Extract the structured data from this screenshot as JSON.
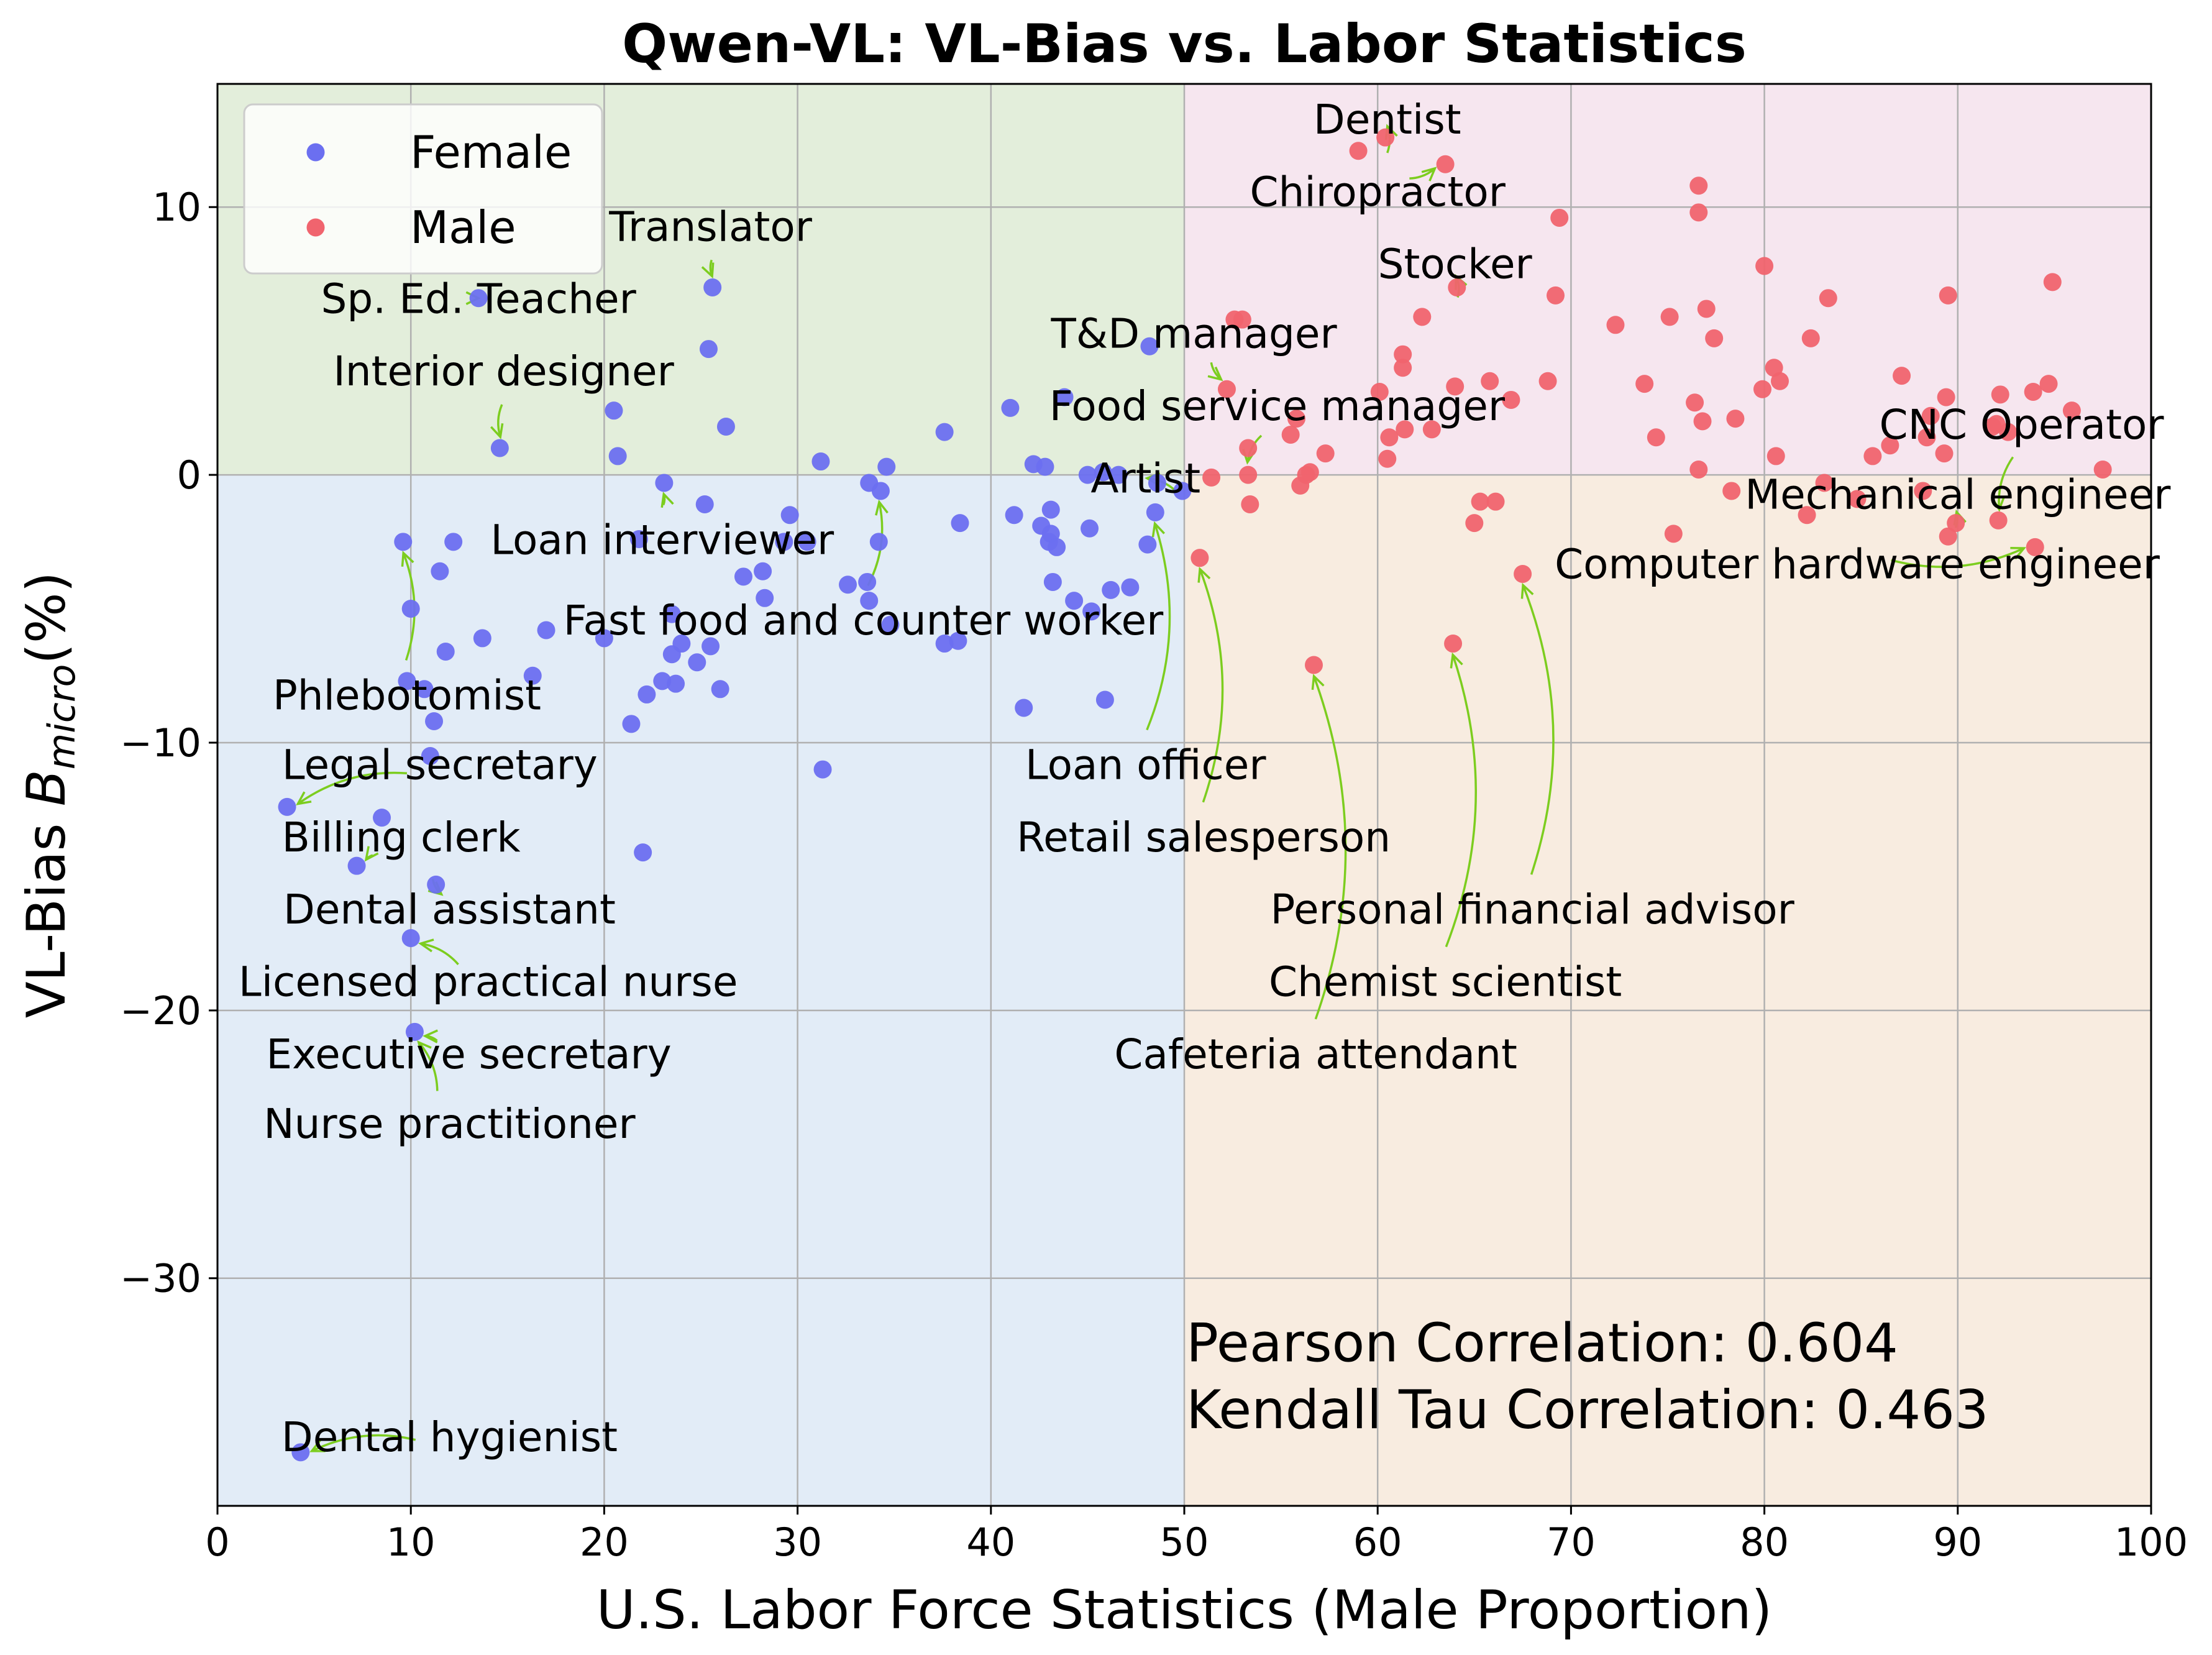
{
  "chart_data": {
    "type": "scatter",
    "title": "Qwen-VL: VL-Bias vs. Labor Statistics",
    "xlabel": "U.S. Labor Force Statistics (Male Proportion)",
    "ylabel_prefix": "VL-Bias  ",
    "ylabel_symbol": "B",
    "ylabel_sub": "micro",
    "ylabel_suffix": "(%)",
    "xlim": [
      0,
      100
    ],
    "ylim": [
      -38.5,
      14.6
    ],
    "xticks": [
      0,
      10,
      20,
      30,
      40,
      50,
      60,
      70,
      80,
      90,
      100
    ],
    "yticks": [
      {
        "v": 10,
        "label": "10"
      },
      {
        "v": 0,
        "label": "0"
      },
      {
        "v": -10,
        "label": "−10"
      },
      {
        "v": -20,
        "label": "−20"
      },
      {
        "v": -30,
        "label": "−30"
      }
    ],
    "grid": true,
    "legend_position": "top-left",
    "quadrant_colors": {
      "top_left": "#e3eedb",
      "top_right": "#f6e6ef",
      "bottom_left": "#e2ecf7",
      "bottom_right": "#f8ece0"
    },
    "annotation_color": "#7ccd1f",
    "series": [
      {
        "name": "Female",
        "color": "#6b6ff0",
        "points": [
          [
            4.3,
            -36.5
          ],
          [
            3.6,
            -12.4
          ],
          [
            7.2,
            -14.6
          ],
          [
            8.5,
            -12.8
          ],
          [
            9.6,
            -2.5
          ],
          [
            9.8,
            -7.7
          ],
          [
            10.0,
            -5.0
          ],
          [
            10.0,
            -17.3
          ],
          [
            10.2,
            -20.8
          ],
          [
            10.7,
            -8.0
          ],
          [
            11.0,
            -10.5
          ],
          [
            11.2,
            -9.2
          ],
          [
            11.3,
            -15.3
          ],
          [
            11.5,
            -3.6
          ],
          [
            11.8,
            -6.6
          ],
          [
            12.2,
            -2.5
          ],
          [
            13.5,
            6.6
          ],
          [
            13.7,
            -6.1
          ],
          [
            14.6,
            1.0
          ],
          [
            16.3,
            -7.5
          ],
          [
            17.0,
            -5.8
          ],
          [
            20.0,
            -6.1
          ],
          [
            20.5,
            2.4
          ],
          [
            20.7,
            0.7
          ],
          [
            21.4,
            -9.3
          ],
          [
            21.8,
            -2.4
          ],
          [
            22.0,
            -14.1
          ],
          [
            22.2,
            -8.2
          ],
          [
            23.0,
            -7.7
          ],
          [
            23.1,
            -0.3
          ],
          [
            23.5,
            -6.7
          ],
          [
            23.5,
            -5.2
          ],
          [
            23.7,
            -7.8
          ],
          [
            24.0,
            -6.3
          ],
          [
            24.8,
            -7.0
          ],
          [
            25.2,
            -1.1
          ],
          [
            25.4,
            4.7
          ],
          [
            25.5,
            -6.4
          ],
          [
            25.6,
            7.0
          ],
          [
            26.0,
            -8.0
          ],
          [
            26.3,
            1.8
          ],
          [
            27.2,
            -3.8
          ],
          [
            28.2,
            -3.6
          ],
          [
            28.3,
            -4.6
          ],
          [
            29.3,
            -2.5
          ],
          [
            29.6,
            -1.5
          ],
          [
            30.5,
            -2.5
          ],
          [
            31.2,
            0.5
          ],
          [
            31.3,
            -11.0
          ],
          [
            32.6,
            -4.1
          ],
          [
            33.6,
            -4.0
          ],
          [
            33.7,
            -4.7
          ],
          [
            33.7,
            -0.3
          ],
          [
            34.2,
            -2.5
          ],
          [
            34.3,
            -0.6
          ],
          [
            34.6,
            0.3
          ],
          [
            34.8,
            -5.6
          ],
          [
            37.6,
            1.6
          ],
          [
            37.6,
            -6.3
          ],
          [
            38.3,
            -6.2
          ],
          [
            38.4,
            -1.8
          ],
          [
            41.0,
            2.5
          ],
          [
            41.2,
            -1.5
          ],
          [
            41.7,
            -8.7
          ],
          [
            42.2,
            0.4
          ],
          [
            42.6,
            -1.9
          ],
          [
            42.8,
            0.3
          ],
          [
            43.0,
            -2.5
          ],
          [
            43.1,
            -1.3
          ],
          [
            43.1,
            -2.2
          ],
          [
            43.2,
            -4.0
          ],
          [
            43.4,
            -2.7
          ],
          [
            43.8,
            2.9
          ],
          [
            44.3,
            -4.7
          ],
          [
            45.0,
            0.0
          ],
          [
            45.1,
            -2.0
          ],
          [
            45.2,
            -5.1
          ],
          [
            45.8,
            0.1
          ],
          [
            45.9,
            -8.4
          ],
          [
            46.2,
            -4.3
          ],
          [
            46.6,
            0.0
          ],
          [
            47.2,
            -4.2
          ],
          [
            48.1,
            -2.6
          ],
          [
            48.2,
            4.8
          ],
          [
            48.5,
            -1.4
          ],
          [
            48.6,
            -0.3
          ],
          [
            49.9,
            -0.6
          ]
        ]
      },
      {
        "name": "Male",
        "color": "#f0646e",
        "points": [
          [
            50.8,
            -3.1
          ],
          [
            51.4,
            -0.1
          ],
          [
            52.2,
            3.2
          ],
          [
            52.6,
            5.8
          ],
          [
            53.0,
            5.8
          ],
          [
            53.3,
            1.0
          ],
          [
            53.3,
            0.0
          ],
          [
            53.4,
            -1.1
          ],
          [
            55.5,
            1.5
          ],
          [
            55.8,
            2.1
          ],
          [
            56.0,
            -0.4
          ],
          [
            56.3,
            0.0
          ],
          [
            56.5,
            0.1
          ],
          [
            56.7,
            -7.1
          ],
          [
            57.3,
            0.8
          ],
          [
            59.0,
            12.1
          ],
          [
            60.1,
            3.1
          ],
          [
            60.4,
            12.6
          ],
          [
            60.5,
            0.6
          ],
          [
            60.6,
            1.4
          ],
          [
            61.3,
            4.5
          ],
          [
            61.3,
            4.0
          ],
          [
            61.4,
            1.7
          ],
          [
            62.3,
            5.9
          ],
          [
            62.8,
            1.7
          ],
          [
            63.5,
            11.6
          ],
          [
            63.9,
            -6.3
          ],
          [
            64.0,
            3.3
          ],
          [
            64.1,
            7.0
          ],
          [
            65.0,
            -1.8
          ],
          [
            65.3,
            -1.0
          ],
          [
            65.8,
            3.5
          ],
          [
            66.1,
            -1.0
          ],
          [
            66.9,
            2.8
          ],
          [
            67.5,
            -3.7
          ],
          [
            68.8,
            3.5
          ],
          [
            69.2,
            6.7
          ],
          [
            69.4,
            9.6
          ],
          [
            72.3,
            5.6
          ],
          [
            73.8,
            3.4
          ],
          [
            74.4,
            1.4
          ],
          [
            75.1,
            5.9
          ],
          [
            75.3,
            -2.2
          ],
          [
            76.4,
            2.7
          ],
          [
            76.6,
            10.8
          ],
          [
            76.6,
            9.8
          ],
          [
            76.6,
            0.2
          ],
          [
            76.8,
            2.0
          ],
          [
            77.0,
            6.2
          ],
          [
            77.4,
            5.1
          ],
          [
            78.3,
            -0.6
          ],
          [
            78.5,
            2.1
          ],
          [
            79.9,
            3.2
          ],
          [
            80.0,
            7.8
          ],
          [
            80.5,
            4.0
          ],
          [
            80.6,
            0.7
          ],
          [
            80.8,
            3.5
          ],
          [
            82.2,
            -1.5
          ],
          [
            82.4,
            5.1
          ],
          [
            83.1,
            -0.3
          ],
          [
            83.3,
            6.6
          ],
          [
            84.8,
            -0.9
          ],
          [
            85.6,
            0.7
          ],
          [
            86.5,
            1.1
          ],
          [
            87.1,
            3.7
          ],
          [
            88.2,
            -0.6
          ],
          [
            88.4,
            1.4
          ],
          [
            88.6,
            2.2
          ],
          [
            89.3,
            0.8
          ],
          [
            89.4,
            2.9
          ],
          [
            89.5,
            6.7
          ],
          [
            89.5,
            -2.3
          ],
          [
            89.9,
            -1.8
          ],
          [
            91.8,
            1.8
          ],
          [
            92.0,
            1.9
          ],
          [
            92.1,
            -1.7
          ],
          [
            92.2,
            3.0
          ],
          [
            92.6,
            1.6
          ],
          [
            93.9,
            3.1
          ],
          [
            94.0,
            -2.7
          ],
          [
            94.7,
            3.4
          ],
          [
            94.9,
            7.2
          ],
          [
            95.9,
            2.4
          ],
          [
            97.5,
            0.2
          ]
        ]
      }
    ],
    "annotations": [
      {
        "text": "Dentist",
        "x": 60.5,
        "y": 12.6,
        "tx": 60.5,
        "ty": 13.3
      },
      {
        "text": "Chiropractor",
        "x": 63.5,
        "y": 11.6,
        "tx": 60.0,
        "ty": 10.6
      },
      {
        "text": "Translator",
        "x": 25.6,
        "y": 7.0,
        "tx": 25.5,
        "ty": 9.3
      },
      {
        "text": "Stocker",
        "x": 64.1,
        "y": 7.0,
        "tx": 64.0,
        "ty": 7.9
      },
      {
        "text": "Sp. Ed. Teacher",
        "x": 13.5,
        "y": 6.6,
        "tx": 13.5,
        "ty": 6.6
      },
      {
        "text": "T&D manager",
        "x": 52.2,
        "y": 3.2,
        "tx": 50.5,
        "ty": 5.3
      },
      {
        "text": "Interior designer",
        "x": 14.6,
        "y": 1.0,
        "tx": 14.8,
        "ty": 3.9
      },
      {
        "text": "Food service manager",
        "x": 53.0,
        "y": 0.1,
        "tx": 54.8,
        "ty": 2.6
      },
      {
        "text": "CNC Operator",
        "x": 92.0,
        "y": -1.7,
        "tx": 93.3,
        "ty": 1.9
      },
      {
        "text": "Artist",
        "x": 48.6,
        "y": -0.3,
        "tx": 48.0,
        "ty": -0.1
      },
      {
        "text": "Mechanical engineer",
        "x": 89.9,
        "y": -1.8,
        "tx": 90.0,
        "ty": -0.7
      },
      {
        "text": "Loan interviewer",
        "x": 23.1,
        "y": -0.3,
        "tx": 23.0,
        "ty": -2.4
      },
      {
        "text": "Computer hardware engineer",
        "x": 94.0,
        "y": -2.7,
        "tx": 84.8,
        "ty": -3.3
      },
      {
        "text": "Fast food and counter worker",
        "x": 34.3,
        "y": -0.6,
        "tx": 33.4,
        "ty": -5.4
      },
      {
        "text": "Phlebotomist",
        "x": 9.6,
        "y": -2.5,
        "tx": 9.8,
        "ty": -8.2
      },
      {
        "text": "Loan officer",
        "x": 48.5,
        "y": -1.4,
        "tx": 48.0,
        "ty": -10.8
      },
      {
        "text": "Legal secretary",
        "x": 3.6,
        "y": -12.4,
        "tx": 11.5,
        "ty": -10.8
      },
      {
        "text": "Retail salesperson",
        "x": 50.8,
        "y": -3.1,
        "tx": 51.0,
        "ty": -13.5
      },
      {
        "text": "Billing clerk",
        "x": 7.2,
        "y": -14.6,
        "tx": 9.5,
        "ty": -13.5
      },
      {
        "text": "Dental assistant",
        "x": 11.3,
        "y": -15.3,
        "tx": 12.0,
        "ty": -16.2
      },
      {
        "text": "Personal financial advisor",
        "x": 67.5,
        "y": -3.7,
        "tx": 68.0,
        "ty": -16.2
      },
      {
        "text": "Licensed practical nurse",
        "x": 10.0,
        "y": -17.3,
        "tx": 14.0,
        "ty": -18.9
      },
      {
        "text": "Chemist scientist",
        "x": 63.9,
        "y": -6.3,
        "tx": 63.5,
        "ty": -18.9
      },
      {
        "text": "Executive secretary",
        "x": 10.2,
        "y": -20.8,
        "tx": 13.0,
        "ty": -21.6
      },
      {
        "text": "Cafeteria attendant",
        "x": 56.7,
        "y": -7.1,
        "tx": 56.8,
        "ty": -21.6
      },
      {
        "text": "Nurse practitioner",
        "x": 10.2,
        "y": -20.8,
        "tx": 12.0,
        "ty": -24.2
      },
      {
        "text": "Dental hygienist",
        "x": 4.3,
        "y": -36.5,
        "tx": 12.0,
        "ty": -35.9
      }
    ],
    "correlations": [
      "Pearson Correlation: 0.604",
      "Kendall Tau Correlation: 0.463"
    ]
  }
}
